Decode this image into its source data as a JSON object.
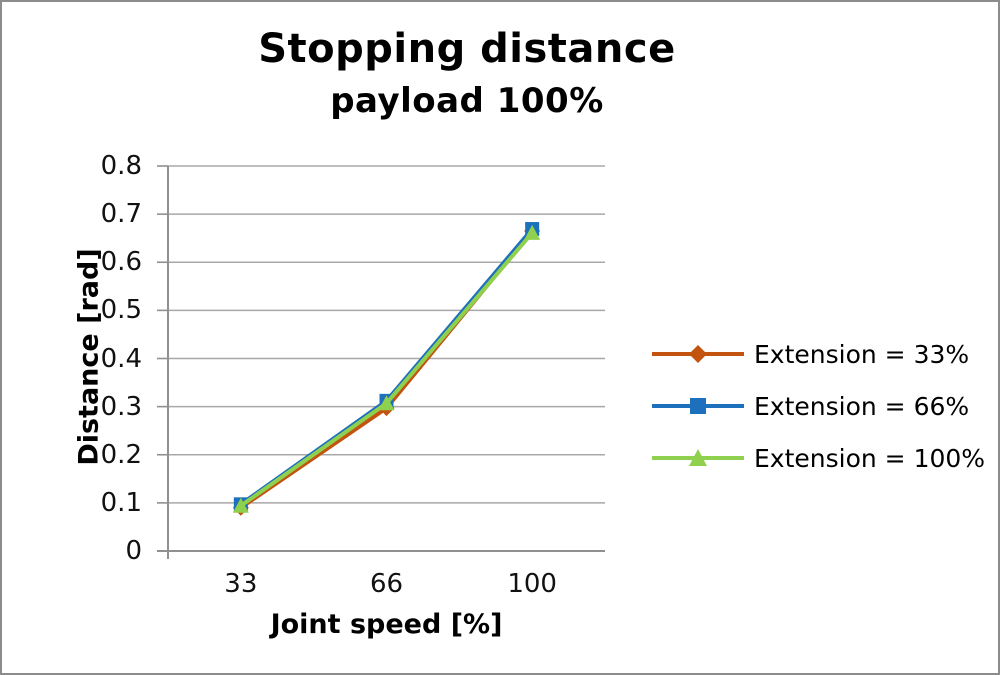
{
  "chart_data": {
    "type": "line",
    "title": "Stopping distance",
    "subtitle": "payload 100%",
    "xlabel": "Joint speed [%]",
    "ylabel": "Distance [rad]",
    "categories": [
      "33",
      "66",
      "100"
    ],
    "series": [
      {
        "name": "Extension = 33%",
        "marker": "diamond",
        "color": "#C2540F",
        "values": [
          0.09,
          0.297,
          0.665
        ]
      },
      {
        "name": "Extension = 66%",
        "marker": "square",
        "color": "#1D70BC",
        "values": [
          0.097,
          0.312,
          0.669
        ]
      },
      {
        "name": "Extension = 100%",
        "marker": "triangle",
        "color": "#8FD14E",
        "values": [
          0.094,
          0.307,
          0.661
        ]
      }
    ],
    "ylim": [
      0,
      0.8
    ],
    "yticks": [
      0,
      0.1,
      0.2,
      0.3,
      0.4,
      0.5,
      0.6,
      0.7,
      0.8
    ],
    "ytick_labels": [
      "0",
      "0.1",
      "0.2",
      "0.3",
      "0.4",
      "0.5",
      "0.6",
      "0.7",
      "0.8"
    ],
    "grid": true,
    "legend_position": "right",
    "colors": {
      "grid": "#A8A8A8",
      "axis": "#909090",
      "frame_border": "#8C8C8C",
      "background": "#FFFFFF",
      "text": "#000000"
    }
  }
}
